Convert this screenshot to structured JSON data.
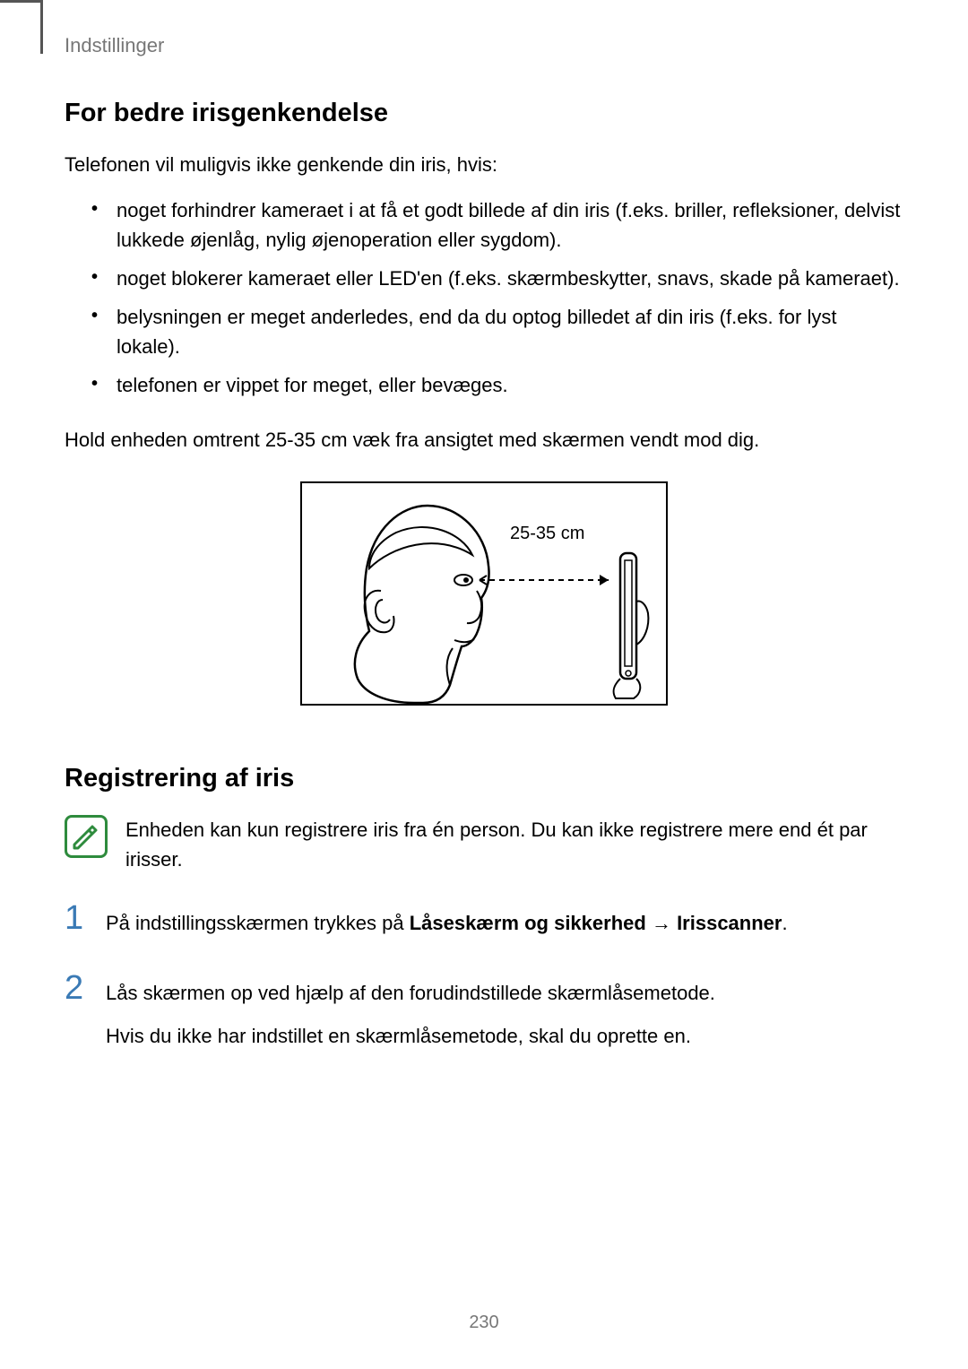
{
  "header": {
    "section": "Indstillinger"
  },
  "section1": {
    "heading": "For bedre irisgenkendelse",
    "intro": "Telefonen vil muligvis ikke genkende din iris, hvis:",
    "bullets": [
      "noget forhindrer kameraet i at få et godt billede af din iris (f.eks. briller, refleksioner, delvist lukkede øjenlåg, nylig øjenoperation eller sygdom).",
      "noget blokerer kameraet eller LED'en (f.eks. skærmbeskytter, snavs, skade på kameraet).",
      "belysningen er meget anderledes, end da du optog billedet af din iris (f.eks. for lyst lokale).",
      "telefonen er vippet for meget, eller bevæges."
    ],
    "instruction": "Hold enheden omtrent 25-35 cm væk fra ansigtet med skærmen vendt mod dig.",
    "figure_label": "25-35 cm"
  },
  "section2": {
    "heading": "Registrering af iris",
    "note": "Enheden kan kun registrere iris fra én person. Du kan ikke registrere mere end ét par irisser.",
    "steps": [
      {
        "num": "1",
        "parts": [
          {
            "t": "På indstillingsskærmen trykkes på ",
            "b": false
          },
          {
            "t": "Låseskærm og sikkerhed",
            "b": true
          },
          {
            "t": " → ",
            "b": false
          },
          {
            "t": "Irisscanner",
            "b": true
          },
          {
            "t": ".",
            "b": false
          }
        ]
      },
      {
        "num": "2",
        "lines": [
          "Lås skærmen op ved hjælp af den forudindstillede skærmlåsemetode.",
          "Hvis du ikke har indstillet en skærmlåsemetode, skal du oprette en."
        ]
      }
    ]
  },
  "page_number": "230",
  "colors": {
    "step_number": "#3a7ab5",
    "note_border": "#2e8b3d",
    "header_gray": "#777777"
  }
}
